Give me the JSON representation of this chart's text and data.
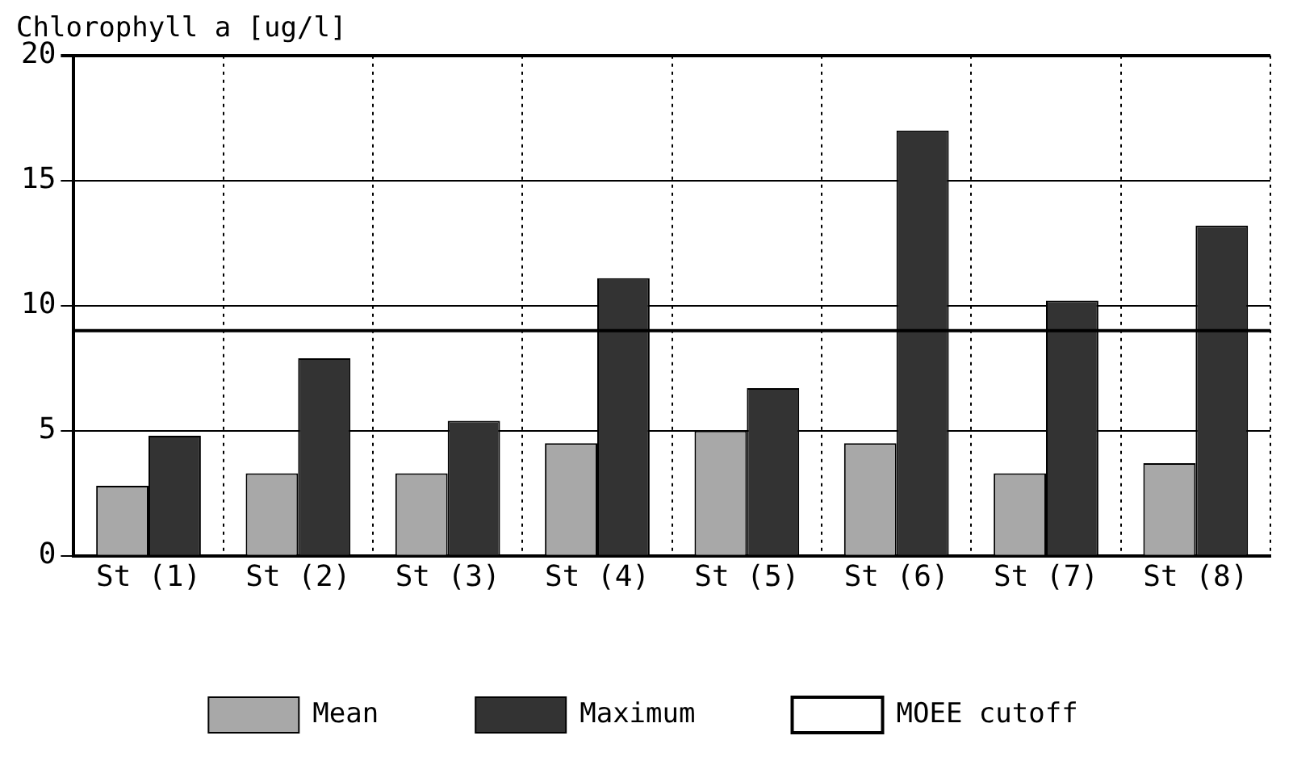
{
  "chart_data": {
    "type": "bar",
    "title": "Chlorophyll a [ug/l]",
    "categories": [
      "St (1)",
      "St (2)",
      "St (3)",
      "St (4)",
      "St (5)",
      "St (6)",
      "St (7)",
      "St (8)"
    ],
    "series": [
      {
        "name": "Mean",
        "color": "#a8a8a8",
        "values": [
          2.8,
          3.3,
          3.3,
          4.5,
          5.0,
          4.5,
          3.3,
          3.7
        ]
      },
      {
        "name": "Maximum",
        "color": "#333333",
        "values": [
          4.8,
          7.9,
          5.4,
          11.1,
          6.7,
          17.0,
          10.2,
          13.2
        ]
      }
    ],
    "ref_lines": [
      {
        "axis": "y",
        "value": 9,
        "label": "MOEE cutoff",
        "color": "#000000",
        "line_style": "solid"
      }
    ],
    "ylim": [
      0,
      20
    ],
    "yticks": [
      0,
      5,
      10,
      15,
      20
    ],
    "grid": true,
    "legend": "bottom"
  }
}
